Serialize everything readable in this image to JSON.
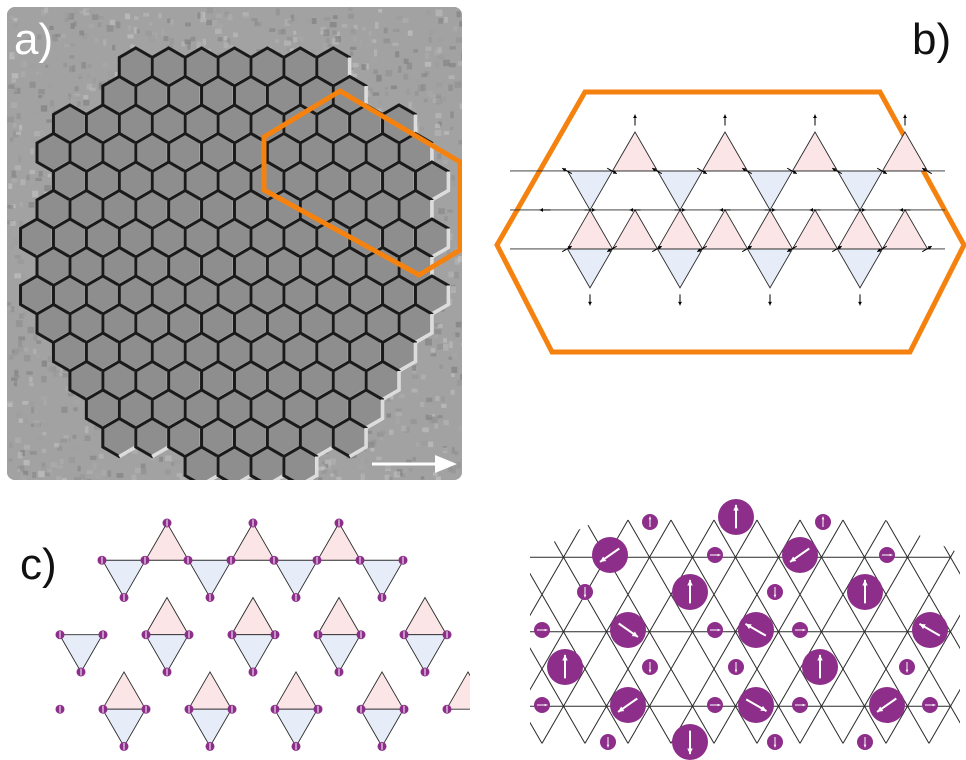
{
  "labels": {
    "a": "a)",
    "b": "b)",
    "c": "c)"
  },
  "colors": {
    "orange": "#f5820f",
    "pink": "#fbe5e6",
    "blue": "#e6ecf8",
    "purple": "#8e2e8b",
    "edge": "#2a2a2a"
  },
  "icons": {
    "scale_arrow": "right-arrow-icon",
    "moment_arrow": "arrow-icon"
  }
}
